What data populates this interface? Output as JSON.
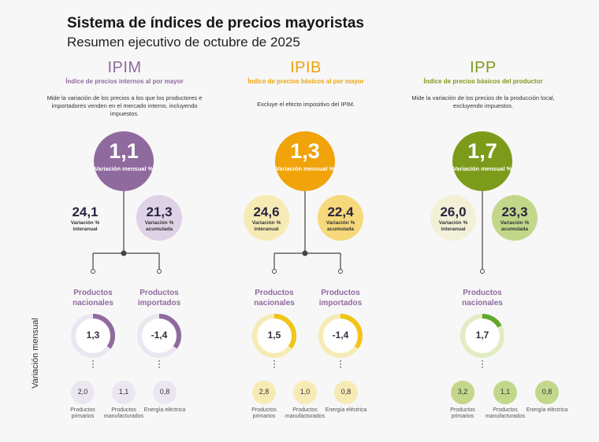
{
  "header": {
    "title": "Sistema de índices de precios mayoristas",
    "subtitle": "Resumen ejecutivo de octubre de 2025",
    "side_label": "Variación mensual"
  },
  "colors": {
    "ipim": "#8f6a9f",
    "ipim_light": "#ddd2e6",
    "ipim_pale": "#ebe6f0",
    "ipib": "#f0a30a",
    "ipib_light": "#f5d97a",
    "ipib_pale": "#f6ebb4",
    "ipp": "#7d9b1a",
    "ipp_light": "#c3d78a",
    "ipp_pale": "#e2ecc3"
  },
  "chart_data": [
    {
      "type": "table",
      "index": "IPIM",
      "name": "Índice de precios internos al por mayor",
      "description": "Mide la variación de los precios a los que los productores e importadores venden en el mercado interno, incluyendo impuestos.",
      "monthly": {
        "value": "1,1",
        "label": "Variación mensual %"
      },
      "interannual": {
        "value": "24,1",
        "label": "Variación % interanual"
      },
      "accumulated": {
        "value": "21,3",
        "label": "Variación % acumulada"
      },
      "products": [
        {
          "name": "Productos nacionales",
          "value": "1,3",
          "fill": 0.35
        },
        {
          "name": "Productos importados",
          "value": "-1,4",
          "fill": 0.35
        }
      ],
      "breakdown": [
        {
          "value": "2,0",
          "label": "Productos primarios"
        },
        {
          "value": "1,1",
          "label": "Productos manufacturados"
        },
        {
          "value": "0,8",
          "label": "Energía eléctrica"
        }
      ]
    },
    {
      "type": "table",
      "index": "IPIB",
      "name": "Índice de precios básicos al por mayor",
      "description": "Excluye el efecto impositivo del IPIM.",
      "monthly": {
        "value": "1,3",
        "label": "Variación mensual %"
      },
      "interannual": {
        "value": "24,6",
        "label": "Variación % interanual"
      },
      "accumulated": {
        "value": "22,4",
        "label": "Variación % acumulada"
      },
      "products": [
        {
          "name": "Productos nacionales",
          "value": "1,5",
          "fill": 0.35
        },
        {
          "name": "Productos importados",
          "value": "-1,4",
          "fill": 0.35
        }
      ],
      "breakdown": [
        {
          "value": "2,8",
          "label": "Productos primarios"
        },
        {
          "value": "1,0",
          "label": "Productos manufacturados"
        },
        {
          "value": "0,8",
          "label": "Energía eléctrica"
        }
      ]
    },
    {
      "type": "table",
      "index": "IPP",
      "name": "Índice de precios básicos del productor",
      "description": "Mide la variación de los precios de la producción local, excluyendo impuestos.",
      "monthly": {
        "value": "1,7",
        "label": "Variación mensual %"
      },
      "interannual": {
        "value": "26,0",
        "label": "Variación % interanual"
      },
      "accumulated": {
        "value": "23,3",
        "label": "Variación % acumulada"
      },
      "products": [
        {
          "name": "Productos nacionales",
          "value": "1,7",
          "fill": 0.17
        }
      ],
      "breakdown": [
        {
          "value": "3,2",
          "label": "Productos primarios"
        },
        {
          "value": "1,1",
          "label": "Productos manufacturados"
        },
        {
          "value": "0,8",
          "label": "Energía eléctrica"
        }
      ]
    }
  ]
}
